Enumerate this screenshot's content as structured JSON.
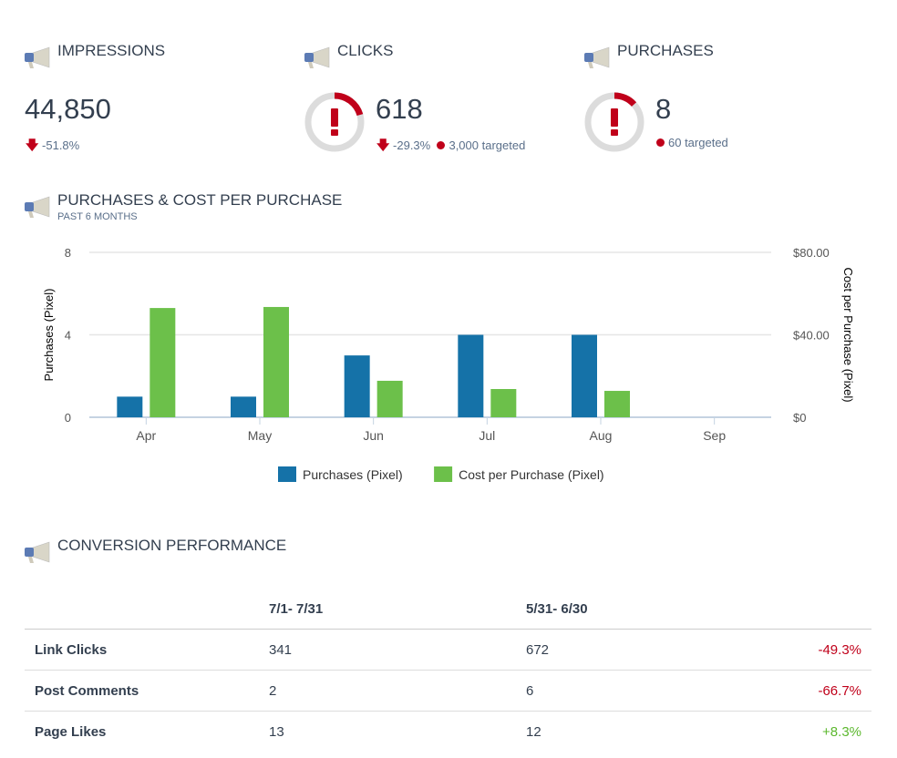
{
  "kpis": [
    {
      "title": "IMPRESSIONS",
      "value": "44,850",
      "change": "-51.8%"
    },
    {
      "title": "CLICKS",
      "value": "618",
      "change": "-29.3%",
      "target": "3,000 targeted",
      "progress": 0.206
    },
    {
      "title": "PURCHASES",
      "value": "8",
      "target": "60 targeted",
      "progress": 0.133
    }
  ],
  "chart_section": {
    "title": "PURCHASES & COST PER PURCHASE",
    "subtitle": "PAST 6 MONTHS"
  },
  "chart_data": {
    "type": "bar",
    "categories": [
      "Apr",
      "May",
      "Jun",
      "Jul",
      "Aug",
      "Sep"
    ],
    "series": [
      {
        "name": "Purchases (Pixel)",
        "axis": "left",
        "color": "#1572a8",
        "values": [
          1,
          1,
          3,
          4,
          4,
          0
        ]
      },
      {
        "name": "Cost per Purchase (Pixel)",
        "axis": "right",
        "color": "#6cc04a",
        "values": [
          53,
          53.5,
          17.7,
          13.7,
          12.8,
          0
        ]
      }
    ],
    "ylabel": "Purchases (Pixel)",
    "ylim": [
      0,
      8
    ],
    "yticks": [
      "0",
      "4",
      "8"
    ],
    "y2label": "Cost per Purchase (Pixel)",
    "y2lim": [
      0,
      80
    ],
    "y2ticks": [
      "$0",
      "$40.00",
      "$80.00"
    ],
    "legend": "bottom",
    "grid": true
  },
  "table_section": {
    "title": "CONVERSION PERFORMANCE"
  },
  "table": {
    "headers": [
      "",
      "7/1- 7/31",
      "5/31- 6/30",
      ""
    ],
    "rows": [
      {
        "label": "Link Clicks",
        "a": "341",
        "b": "672",
        "change": "-49.3%",
        "dir": "neg"
      },
      {
        "label": "Post Comments",
        "a": "2",
        "b": "6",
        "change": "-66.7%",
        "dir": "neg"
      },
      {
        "label": "Page Likes",
        "a": "13",
        "b": "12",
        "change": "+8.3%",
        "dir": "pos"
      }
    ]
  }
}
